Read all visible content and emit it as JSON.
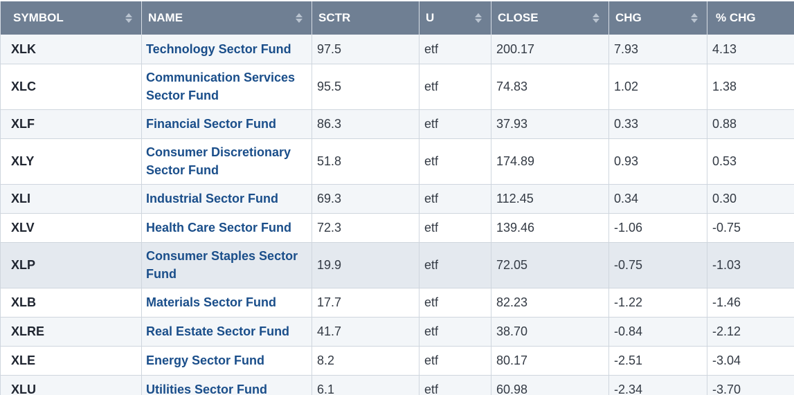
{
  "table": {
    "headers": [
      "SYMBOL",
      "NAME",
      "SCTR",
      "U",
      "CLOSE",
      "CHG",
      "% CHG"
    ],
    "rows": [
      {
        "symbol": "XLK",
        "name": "Technology Sector Fund",
        "sctr": "97.5",
        "u": "etf",
        "close": "200.17",
        "chg": "7.93",
        "pct": "4.13"
      },
      {
        "symbol": "XLC",
        "name": "Communication Services Sector Fund",
        "sctr": "95.5",
        "u": "etf",
        "close": "74.83",
        "chg": "1.02",
        "pct": "1.38"
      },
      {
        "symbol": "XLF",
        "name": "Financial Sector Fund",
        "sctr": "86.3",
        "u": "etf",
        "close": "37.93",
        "chg": "0.33",
        "pct": "0.88"
      },
      {
        "symbol": "XLY",
        "name": "Consumer Discretionary Sector Fund",
        "sctr": "51.8",
        "u": "etf",
        "close": "174.89",
        "chg": "0.93",
        "pct": "0.53"
      },
      {
        "symbol": "XLI",
        "name": "Industrial Sector Fund",
        "sctr": "69.3",
        "u": "etf",
        "close": "112.45",
        "chg": "0.34",
        "pct": "0.30"
      },
      {
        "symbol": "XLV",
        "name": "Health Care Sector Fund",
        "sctr": "72.3",
        "u": "etf",
        "close": "139.46",
        "chg": "-1.06",
        "pct": "-0.75"
      },
      {
        "symbol": "XLP",
        "name": "Consumer Staples Sector Fund",
        "sctr": "19.9",
        "u": "etf",
        "close": "72.05",
        "chg": "-0.75",
        "pct": "-1.03"
      },
      {
        "symbol": "XLB",
        "name": "Materials Sector Fund",
        "sctr": "17.7",
        "u": "etf",
        "close": "82.23",
        "chg": "-1.22",
        "pct": "-1.46"
      },
      {
        "symbol": "XLRE",
        "name": "Real Estate Sector Fund",
        "sctr": "41.7",
        "u": "etf",
        "close": "38.70",
        "chg": "-0.84",
        "pct": "-2.12"
      },
      {
        "symbol": "XLE",
        "name": "Energy Sector Fund",
        "sctr": "8.2",
        "u": "etf",
        "close": "80.17",
        "chg": "-2.51",
        "pct": "-3.04"
      },
      {
        "symbol": "XLU",
        "name": "Utilities Sector Fund",
        "sctr": "6.1",
        "u": "etf",
        "close": "60.98",
        "chg": "-2.34",
        "pct": "-3.70"
      }
    ]
  }
}
